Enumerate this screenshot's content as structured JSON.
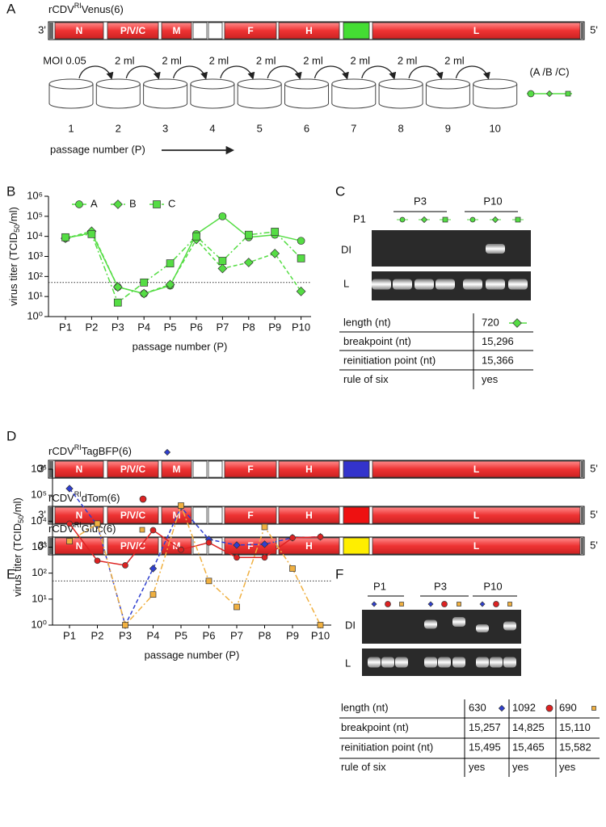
{
  "panel_labels": [
    "A",
    "B",
    "C",
    "D",
    "E",
    "F"
  ],
  "genome": {
    "end_left": "3'",
    "end_right": "5'",
    "genes": [
      "N",
      "P/V/C",
      "M",
      "F",
      "H",
      "L"
    ]
  },
  "constructs": [
    {
      "name": [
        "rCDV",
        "RI",
        "Venus(6)"
      ],
      "insert_color": "#44dd33"
    },
    {
      "name": [
        "rCDV",
        "RI",
        "TagBFP(6)"
      ],
      "insert_color": "#3333cc"
    },
    {
      "name": [
        "rCDV",
        "RI",
        "dTom(6)"
      ],
      "insert_color": "#ee1111"
    },
    {
      "name": [
        "rCDV",
        "RI",
        "Gluc(6)"
      ],
      "insert_color": "#ffee00"
    }
  ],
  "passage_diagram": {
    "first_transfer": "MOI 0.05",
    "transfer": "2 ml",
    "passages": [
      "1",
      "2",
      "3",
      "4",
      "5",
      "6",
      "7",
      "8",
      "9",
      "10"
    ],
    "axis_label": "passage number (P)",
    "legend": "(A /B /C)"
  },
  "chart_data": [
    {
      "type": "line",
      "log_scale": true,
      "xlabel": "passage number (P)",
      "ylabel": [
        "virus titer (TCID",
        "50",
        "/ml)"
      ],
      "categories": [
        "P1",
        "P2",
        "P3",
        "P4",
        "P5",
        "P6",
        "P7",
        "P8",
        "P9",
        "P10"
      ],
      "ylim": [
        1,
        1000000
      ],
      "yticks": [
        {
          "value": 1,
          "label": "10⁰"
        },
        {
          "value": 10,
          "label": "10¹"
        },
        {
          "value": 100,
          "label": "10²"
        },
        {
          "value": 1000,
          "label": "10³"
        },
        {
          "value": 10000,
          "label": "10⁴"
        },
        {
          "value": 100000,
          "label": "10⁵"
        },
        {
          "value": 1000000,
          "label": "10⁶"
        }
      ],
      "reference_line": 50,
      "series": [
        {
          "name": "A",
          "color": "#55dd44",
          "marker": "circle",
          "dash": "solid",
          "values": [
            8000,
            15000,
            30,
            14,
            35,
            13000,
            100000,
            9000,
            12000,
            6000
          ]
        },
        {
          "name": "B",
          "color": "#55dd44",
          "marker": "diamond",
          "dash": "dashed",
          "values": [
            8000,
            18000,
            30,
            14,
            40,
            7000,
            250,
            500,
            1400,
            18
          ]
        },
        {
          "name": "C",
          "color": "#55dd44",
          "marker": "square",
          "dash": "dashdot",
          "values": [
            9000,
            13000,
            5,
            50,
            450,
            10000,
            600,
            12000,
            17000,
            800
          ]
        }
      ]
    },
    {
      "type": "line",
      "log_scale": true,
      "xlabel": "passage number (P)",
      "ylabel": [
        "virus titer (TCID",
        "50",
        "/ml)"
      ],
      "categories": [
        "P1",
        "P2",
        "P3",
        "P4",
        "P5",
        "P6",
        "P7",
        "P8",
        "P9",
        "P10"
      ],
      "ylim": [
        1,
        1000000
      ],
      "yticks": [
        {
          "value": 1,
          "label": "10⁰"
        },
        {
          "value": 10,
          "label": "10¹"
        },
        {
          "value": 100,
          "label": "10²"
        },
        {
          "value": 1000,
          "label": "10³"
        },
        {
          "value": 10000,
          "label": "10⁴"
        },
        {
          "value": 100000,
          "label": "10⁵"
        },
        {
          "value": 1000000,
          "label": "10⁶"
        }
      ],
      "reference_line": 50,
      "series": [
        {
          "color": "#2f3fd0",
          "marker": "diamond",
          "dash": "dashed",
          "values": [
            180000,
            7000,
            1,
            150,
            35000,
            2000,
            1200,
            1300,
            2300,
            2500
          ]
        },
        {
          "color": "#dd2222",
          "marker": "circle",
          "dash": "solid",
          "values": [
            8000,
            300,
            200,
            4500,
            800,
            1500,
            400,
            400,
            2300,
            2500
          ]
        },
        {
          "color": "#f0b040",
          "marker": "square",
          "dash": "dashdot",
          "values": [
            1700,
            8000,
            1,
            15,
            40000,
            50,
            5,
            6000,
            150,
            1
          ]
        }
      ]
    }
  ],
  "gel_c": {
    "lane_one": "P1",
    "groups": [
      "P3",
      "P10"
    ],
    "rows": [
      "DI",
      "L"
    ]
  },
  "table_c": {
    "rows": [
      [
        "length (nt)",
        "720"
      ],
      [
        "breakpoint (nt)",
        "15,296"
      ],
      [
        "reinitiation point (nt)",
        "15,366"
      ],
      [
        "rule of six",
        "yes"
      ]
    ]
  },
  "gel_f": {
    "groups": [
      "P1",
      "P3",
      "P10"
    ],
    "rows": [
      "DI",
      "L"
    ]
  },
  "table_f": {
    "rows": [
      [
        "length (nt)",
        "630",
        "1092",
        "690"
      ],
      [
        "breakpoint (nt)",
        "15,257",
        "14,825",
        "15,110"
      ],
      [
        "reinitiation point (nt)",
        "15,495",
        "15,465",
        "15,582"
      ],
      [
        "rule of six",
        "yes",
        "yes",
        "yes"
      ]
    ]
  }
}
